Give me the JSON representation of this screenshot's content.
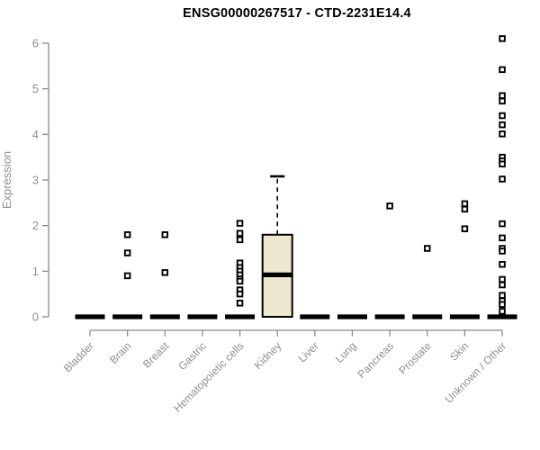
{
  "chart_data": {
    "type": "boxplot",
    "title": "ENSG00000267517 - CTD-2231E14.4",
    "ylabel": "Expression",
    "xlabel": "",
    "ylim": [
      0,
      6.2
    ],
    "yticks": [
      0,
      1,
      2,
      3,
      4,
      5,
      6
    ],
    "grid": false,
    "legend": "none",
    "categories": [
      "Bladder",
      "Brain",
      "Breast",
      "Gastric",
      "Hematopoietic cells",
      "Kidney",
      "Liver",
      "Lung",
      "Pancreas",
      "Prostate",
      "Skin",
      "Unknown / Other"
    ],
    "series": [
      {
        "category": "Bladder",
        "q1": 0,
        "median": 0,
        "q3": 0,
        "whisker_low": 0,
        "whisker_high": 0,
        "outliers": []
      },
      {
        "category": "Brain",
        "q1": 0,
        "median": 0,
        "q3": 0,
        "whisker_low": 0,
        "whisker_high": 0,
        "outliers": [
          1.8,
          1.4,
          0.9
        ]
      },
      {
        "category": "Breast",
        "q1": 0,
        "median": 0,
        "q3": 0,
        "whisker_low": 0,
        "whisker_high": 0,
        "outliers": [
          1.8,
          0.97
        ]
      },
      {
        "category": "Gastric",
        "q1": 0,
        "median": 0,
        "q3": 0,
        "whisker_low": 0,
        "whisker_high": 0,
        "outliers": []
      },
      {
        "category": "Hematopoietic cells",
        "q1": 0,
        "median": 0,
        "q3": 0,
        "whisker_low": 0,
        "whisker_high": 0,
        "outliers": [
          2.05,
          1.83,
          1.69,
          1.18,
          1.08,
          1.0,
          0.92,
          0.83,
          0.78,
          0.59,
          0.5,
          0.3
        ]
      },
      {
        "category": "Kidney",
        "q1": 0,
        "median": 0.92,
        "q3": 1.8,
        "whisker_low": 0,
        "whisker_high": 3.08,
        "outliers": []
      },
      {
        "category": "Liver",
        "q1": 0,
        "median": 0,
        "q3": 0,
        "whisker_low": 0,
        "whisker_high": 0,
        "outliers": []
      },
      {
        "category": "Lung",
        "q1": 0,
        "median": 0,
        "q3": 0,
        "whisker_low": 0,
        "whisker_high": 0,
        "outliers": []
      },
      {
        "category": "Pancreas",
        "q1": 0,
        "median": 0,
        "q3": 0,
        "whisker_low": 0,
        "whisker_high": 0,
        "outliers": [
          2.43
        ]
      },
      {
        "category": "Prostate",
        "q1": 0,
        "median": 0,
        "q3": 0,
        "whisker_low": 0,
        "whisker_high": 0,
        "outliers": [
          1.5
        ]
      },
      {
        "category": "Skin",
        "q1": 0,
        "median": 0,
        "q3": 0,
        "whisker_low": 0,
        "whisker_high": 0,
        "outliers": [
          2.48,
          2.36,
          1.93
        ]
      },
      {
        "category": "Unknown / Other",
        "q1": 0,
        "median": 0,
        "q3": 0,
        "whisker_low": 0,
        "whisker_high": 0,
        "outliers": [
          6.1,
          5.42,
          4.85,
          4.73,
          4.41,
          4.21,
          4.01,
          3.5,
          3.42,
          3.35,
          3.02,
          2.04,
          1.73,
          1.5,
          1.44,
          1.15,
          0.82,
          0.7,
          0.47,
          0.35,
          0.27,
          0.12
        ]
      }
    ],
    "colors": {
      "background": "#ffffff",
      "box_fill": "#ede8cf",
      "box_stroke": "#000000",
      "median": "#000000",
      "whisker": "#000000",
      "point_stroke": "#000000",
      "point_fill": "#ffffff",
      "axis": "#8a8a8a",
      "tick_label": "#8f8f8f",
      "title": "#000000"
    }
  }
}
